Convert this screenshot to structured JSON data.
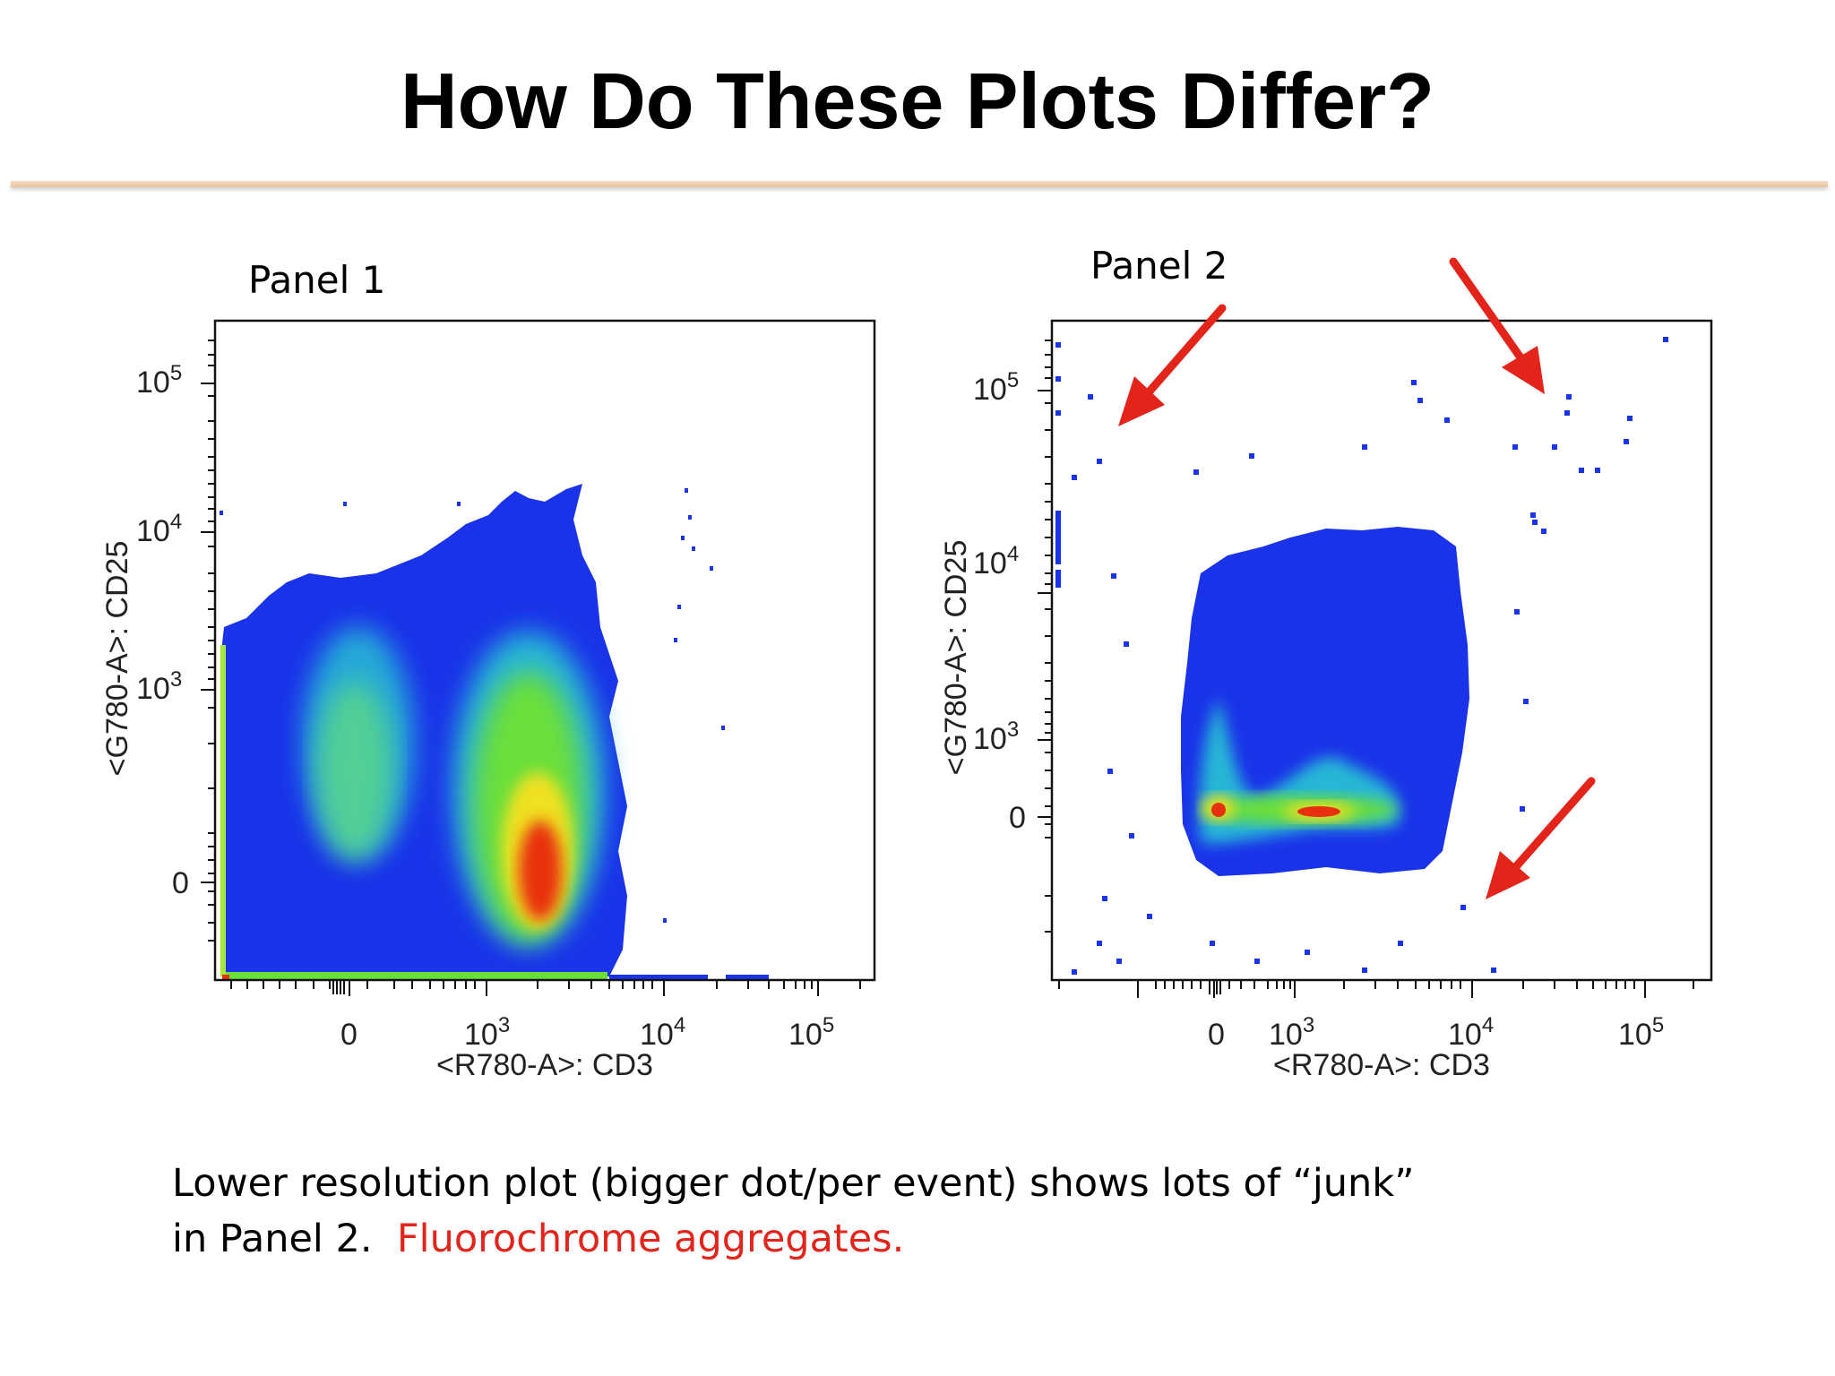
{
  "slide": {
    "title": "How Do These Plots Differ?",
    "caption_line1": "Lower resolution plot (bigger dot/per event) shows lots of “junk”",
    "caption_line2": "in Panel 2.",
    "caption_highlight": "Fluorochrome aggregates.",
    "highlight_color": "#e3241b",
    "rule_color": "#ecc9a2"
  },
  "chart_data": [
    {
      "type": "scatter",
      "panel_label": "Panel 1",
      "xlabel": "<R780-A>: CD3",
      "ylabel": "<G780-A>: CD25",
      "x_scale": "biexponential (logicle)",
      "y_scale": "biexponential (logicle)",
      "x_ticks": [
        "0",
        "10^3",
        "10^4",
        "10^5"
      ],
      "y_ticks": [
        "0",
        "10^3",
        "10^4",
        "10^5"
      ],
      "colormap": "density (blue → cyan → green → yellow → red)",
      "populations": [
        {
          "name": "",
          "x_center": 200,
          "y_center": 250,
          "peak_density": "cyan-green"
        },
        {
          "name": "",
          "x_center": 2000,
          "y_center": 0,
          "peak_density": "red"
        }
      ],
      "dot_resolution": "high (small dots per event)"
    },
    {
      "type": "scatter",
      "panel_label": "Panel 2",
      "xlabel": "<R780-A>: CD3",
      "ylabel": "<G780-A>: CD25",
      "x_scale": "biexponential (logicle)",
      "y_scale": "biexponential (logicle)",
      "x_ticks": [
        "0",
        "10^3",
        "10^4",
        "10^5"
      ],
      "y_ticks": [
        "0",
        "10^3",
        "10^4",
        "10^5"
      ],
      "colormap": "density (blue → cyan → green → yellow → red)",
      "populations": [
        {
          "name": "",
          "x_center": 0,
          "y_center": 0,
          "peak_density": "red"
        },
        {
          "name": "",
          "x_center": 1500,
          "y_center": 0,
          "peak_density": "red"
        }
      ],
      "dot_resolution": "low (bigger dot per event)",
      "annotations": [
        {
          "type": "arrow",
          "color": "#e3241b",
          "points_to": "scattered events upper-left"
        },
        {
          "type": "arrow",
          "color": "#e3241b",
          "points_to": "scattered events upper-right"
        },
        {
          "type": "arrow",
          "color": "#e3241b",
          "points_to": "scattered events lower-right"
        }
      ]
    }
  ]
}
